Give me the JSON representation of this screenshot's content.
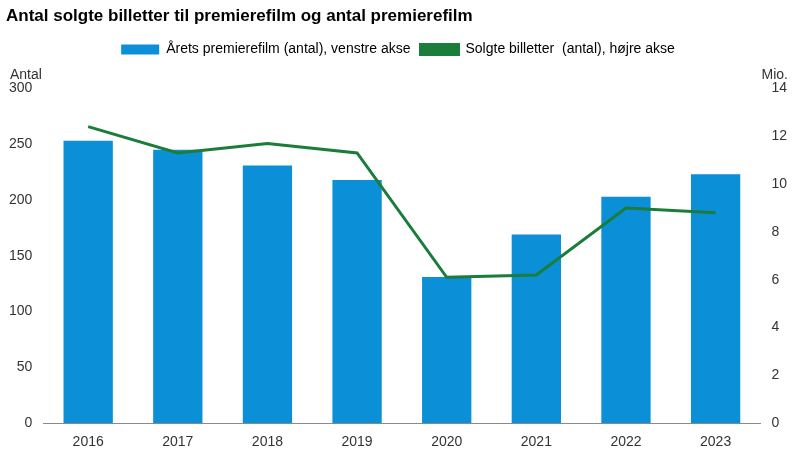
{
  "chart_data": {
    "type": "bar",
    "title": "Antal solgte billetter til premierefilm og antal premierefilm",
    "categories": [
      "2016",
      "2017",
      "2018",
      "2019",
      "2020",
      "2021",
      "2022",
      "2023"
    ],
    "series": [
      {
        "name": "Årets premierefilm (antal), venstre akse",
        "type": "bar",
        "color": "#0b8fd6",
        "values": [
          253,
          245,
          231,
          218,
          131,
          169,
          203,
          223
        ]
      },
      {
        "name": "Solgte billetter  (antal), højre akse",
        "type": "line",
        "color": "#1b7d3a",
        "axis": "y2",
        "marker": "none",
        "values": [
          12.4,
          11.3,
          11.7,
          11.3,
          6.1,
          6.2,
          9.0,
          8.8
        ]
      }
    ],
    "ylabel": "Antal",
    "y2label": "Mio.",
    "ylim": [
      0,
      300
    ],
    "yticks": [
      0,
      50,
      100,
      150,
      200,
      250,
      300
    ],
    "y2lim": [
      0,
      14
    ],
    "y2ticks": [
      0,
      2,
      4,
      6,
      8,
      10,
      12,
      14
    ],
    "grid": false,
    "legend": "top"
  }
}
